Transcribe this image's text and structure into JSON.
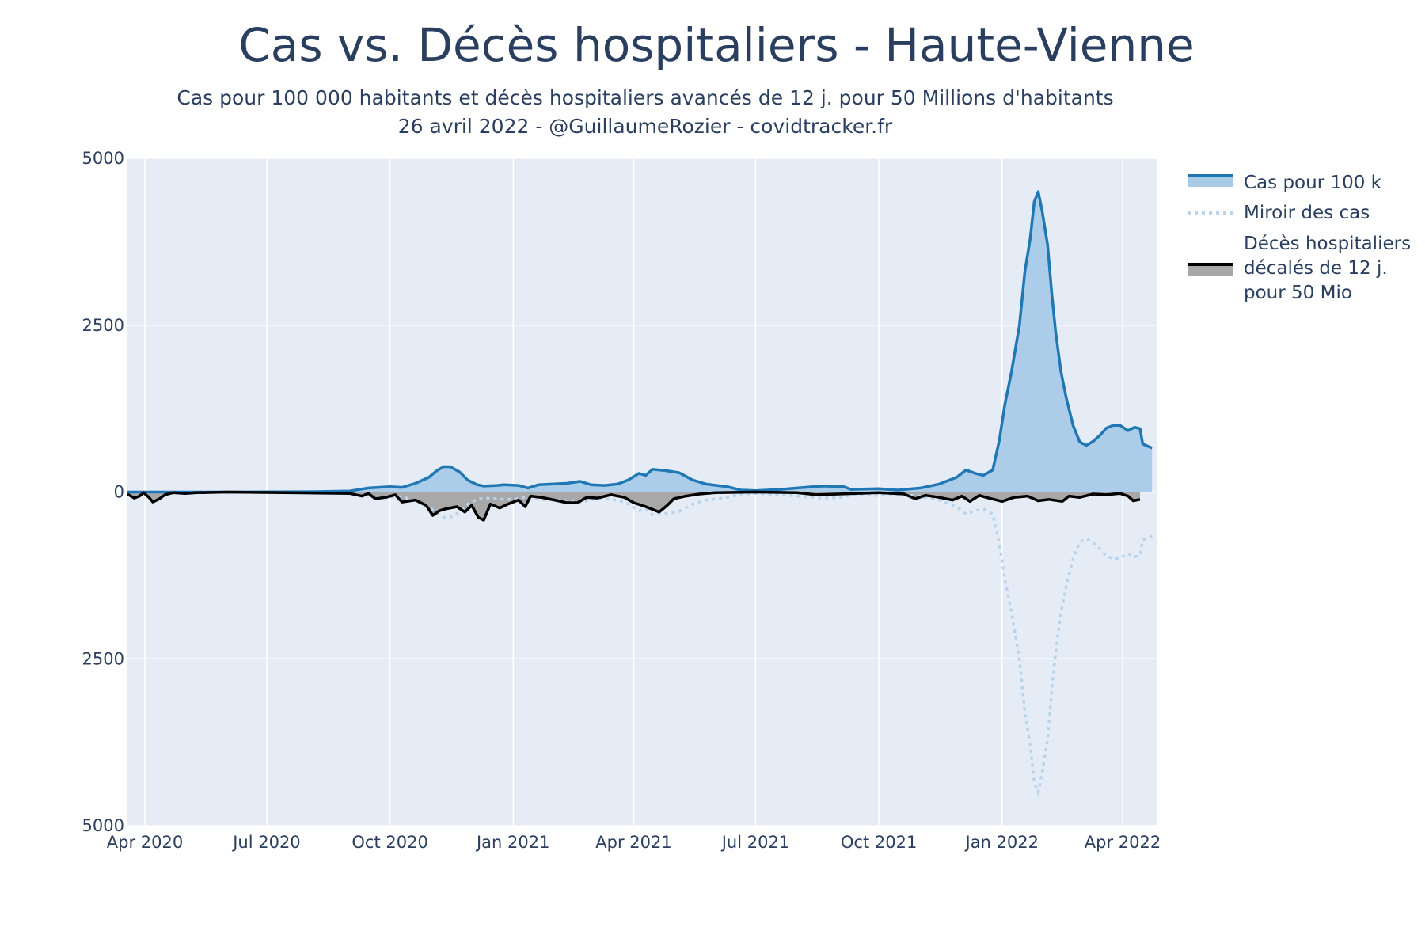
{
  "chart_data": {
    "type": "area",
    "title": "Cas vs. Décès hospitaliers - Haute-Vienne",
    "subtitle_lines": [
      "Cas pour 100 000 habitants et décès hospitaliers avancés de 12 j. pour 50 Millions d'habitants",
      "26 avril 2022 - @GuillaumeRozier - covidtracker.fr"
    ],
    "x_ticks": [
      "Apr 2020",
      "Jul 2020",
      "Oct 2020",
      "Jan 2021",
      "Apr 2021",
      "Jul 2021",
      "Oct 2021",
      "Jan 2022",
      "Apr 2022"
    ],
    "x_tick_dates": [
      "2020-04-01",
      "2020-07-01",
      "2020-10-01",
      "2021-01-01",
      "2021-04-01",
      "2021-07-01",
      "2021-10-01",
      "2022-01-01",
      "2022-04-01"
    ],
    "y_ticks": [
      {
        "value": 5000,
        "label": "5000"
      },
      {
        "value": 2500,
        "label": "2500"
      },
      {
        "value": 0,
        "label": "0"
      },
      {
        "value": -2500,
        "label": "2500"
      },
      {
        "value": -5000,
        "label": "5000"
      }
    ],
    "xlim": [
      "2020-03-19",
      "2022-04-27"
    ],
    "ylim": [
      -5000,
      5000
    ],
    "grid": true,
    "legend_position": "right",
    "colors": {
      "cases_line": "#1f77b4",
      "cases_fill": "#a8cbe8",
      "mirror_line": "#b8d4ec",
      "deaths_line": "#000000",
      "deaths_fill": "#a8a8a8",
      "plot_bg": "#e5ecf6",
      "grid": "#ffffff"
    },
    "series": [
      {
        "name": "Cas pour 100 k",
        "style": "line-fill",
        "points": [
          [
            "2020-03-19",
            0
          ],
          [
            "2020-06-01",
            0
          ],
          [
            "2020-08-01",
            5
          ],
          [
            "2020-09-01",
            15
          ],
          [
            "2020-09-15",
            60
          ],
          [
            "2020-10-01",
            80
          ],
          [
            "2020-10-10",
            70
          ],
          [
            "2020-10-20",
            130
          ],
          [
            "2020-10-30",
            220
          ],
          [
            "2020-11-05",
            320
          ],
          [
            "2020-11-10",
            380
          ],
          [
            "2020-11-15",
            380
          ],
          [
            "2020-11-22",
            300
          ],
          [
            "2020-11-28",
            180
          ],
          [
            "2020-12-05",
            110
          ],
          [
            "2020-12-10",
            90
          ],
          [
            "2020-12-20",
            100
          ],
          [
            "2020-12-25",
            110
          ],
          [
            "2021-01-05",
            100
          ],
          [
            "2021-01-12",
            60
          ],
          [
            "2021-01-20",
            110
          ],
          [
            "2021-01-30",
            120
          ],
          [
            "2021-02-10",
            130
          ],
          [
            "2021-02-20",
            160
          ],
          [
            "2021-02-28",
            110
          ],
          [
            "2021-03-10",
            100
          ],
          [
            "2021-03-20",
            120
          ],
          [
            "2021-03-28",
            180
          ],
          [
            "2021-04-05",
            280
          ],
          [
            "2021-04-10",
            250
          ],
          [
            "2021-04-15",
            340
          ],
          [
            "2021-04-25",
            320
          ],
          [
            "2021-05-05",
            290
          ],
          [
            "2021-05-15",
            180
          ],
          [
            "2021-05-25",
            120
          ],
          [
            "2021-06-10",
            80
          ],
          [
            "2021-06-20",
            30
          ],
          [
            "2021-07-01",
            20
          ],
          [
            "2021-07-20",
            40
          ],
          [
            "2021-08-01",
            60
          ],
          [
            "2021-08-20",
            90
          ],
          [
            "2021-09-05",
            80
          ],
          [
            "2021-09-10",
            40
          ],
          [
            "2021-10-01",
            50
          ],
          [
            "2021-10-15",
            30
          ],
          [
            "2021-11-01",
            60
          ],
          [
            "2021-11-15",
            120
          ],
          [
            "2021-11-28",
            220
          ],
          [
            "2021-12-05",
            330
          ],
          [
            "2021-12-12",
            280
          ],
          [
            "2021-12-18",
            250
          ],
          [
            "2021-12-25",
            330
          ],
          [
            "2021-12-30",
            780
          ],
          [
            "2022-01-03",
            1300
          ],
          [
            "2022-01-08",
            1800
          ],
          [
            "2022-01-14",
            2500
          ],
          [
            "2022-01-18",
            3300
          ],
          [
            "2022-01-22",
            3800
          ],
          [
            "2022-01-25",
            4350
          ],
          [
            "2022-01-28",
            4500
          ],
          [
            "2022-01-31",
            4200
          ],
          [
            "2022-02-04",
            3700
          ],
          [
            "2022-02-07",
            3000
          ],
          [
            "2022-02-10",
            2400
          ],
          [
            "2022-02-14",
            1800
          ],
          [
            "2022-02-18",
            1400
          ],
          [
            "2022-02-23",
            1000
          ],
          [
            "2022-02-28",
            750
          ],
          [
            "2022-03-05",
            700
          ],
          [
            "2022-03-10",
            760
          ],
          [
            "2022-03-15",
            850
          ],
          [
            "2022-03-20",
            960
          ],
          [
            "2022-03-25",
            1000
          ],
          [
            "2022-03-30",
            1000
          ],
          [
            "2022-04-05",
            920
          ],
          [
            "2022-04-10",
            970
          ],
          [
            "2022-04-14",
            950
          ],
          [
            "2022-04-16",
            720
          ],
          [
            "2022-04-23",
            660
          ]
        ]
      },
      {
        "name": "Miroir des cas",
        "style": "dotted-mirror",
        "mirror_of": 0
      },
      {
        "name": "Décès hospitaliers décalés de 12 j. pour 50 Mio",
        "legend_lines": [
          "Décès hospitaliers",
          "décalés de 12 j.",
          "pour 50 Mio"
        ],
        "style": "line-fill-negative",
        "points": [
          [
            "2020-03-19",
            -30
          ],
          [
            "2020-03-24",
            -90
          ],
          [
            "2020-03-28",
            -60
          ],
          [
            "2020-03-31",
            -10
          ],
          [
            "2020-04-04",
            -80
          ],
          [
            "2020-04-07",
            -150
          ],
          [
            "2020-04-12",
            -100
          ],
          [
            "2020-04-16",
            -40
          ],
          [
            "2020-04-22",
            -10
          ],
          [
            "2020-05-01",
            -20
          ],
          [
            "2020-05-10",
            -10
          ],
          [
            "2020-06-01",
            0
          ],
          [
            "2020-09-01",
            -20
          ],
          [
            "2020-09-10",
            -60
          ],
          [
            "2020-09-15",
            -20
          ],
          [
            "2020-09-20",
            -100
          ],
          [
            "2020-09-28",
            -80
          ],
          [
            "2020-10-05",
            -40
          ],
          [
            "2020-10-10",
            -150
          ],
          [
            "2020-10-20",
            -120
          ],
          [
            "2020-10-28",
            -200
          ],
          [
            "2020-11-02",
            -350
          ],
          [
            "2020-11-07",
            -280
          ],
          [
            "2020-11-12",
            -250
          ],
          [
            "2020-11-20",
            -220
          ],
          [
            "2020-11-26",
            -300
          ],
          [
            "2020-12-01",
            -200
          ],
          [
            "2020-12-06",
            -380
          ],
          [
            "2020-12-10",
            -420
          ],
          [
            "2020-12-15",
            -180
          ],
          [
            "2020-12-22",
            -240
          ],
          [
            "2020-12-28",
            -180
          ],
          [
            "2021-01-05",
            -120
          ],
          [
            "2021-01-10",
            -220
          ],
          [
            "2021-01-14",
            -60
          ],
          [
            "2021-01-22",
            -80
          ],
          [
            "2021-02-01",
            -120
          ],
          [
            "2021-02-10",
            -160
          ],
          [
            "2021-02-18",
            -160
          ],
          [
            "2021-02-25",
            -80
          ],
          [
            "2021-03-05",
            -90
          ],
          [
            "2021-03-15",
            -40
          ],
          [
            "2021-03-25",
            -80
          ],
          [
            "2021-04-01",
            -160
          ],
          [
            "2021-04-10",
            -220
          ],
          [
            "2021-04-20",
            -300
          ],
          [
            "2021-04-26",
            -200
          ],
          [
            "2021-05-01",
            -100
          ],
          [
            "2021-05-10",
            -60
          ],
          [
            "2021-05-20",
            -30
          ],
          [
            "2021-06-01",
            -10
          ],
          [
            "2021-07-01",
            0
          ],
          [
            "2021-08-01",
            -10
          ],
          [
            "2021-08-15",
            -40
          ],
          [
            "2021-09-01",
            -30
          ],
          [
            "2021-10-01",
            -10
          ],
          [
            "2021-10-20",
            -30
          ],
          [
            "2021-10-28",
            -100
          ],
          [
            "2021-11-05",
            -50
          ],
          [
            "2021-11-15",
            -80
          ],
          [
            "2021-11-25",
            -120
          ],
          [
            "2021-12-02",
            -60
          ],
          [
            "2021-12-08",
            -140
          ],
          [
            "2021-12-15",
            -50
          ],
          [
            "2021-12-20",
            -80
          ],
          [
            "2022-01-01",
            -140
          ],
          [
            "2022-01-10",
            -80
          ],
          [
            "2022-01-20",
            -60
          ],
          [
            "2022-01-28",
            -130
          ],
          [
            "2022-02-05",
            -110
          ],
          [
            "2022-02-15",
            -140
          ],
          [
            "2022-02-20",
            -60
          ],
          [
            "2022-02-28",
            -80
          ],
          [
            "2022-03-10",
            -30
          ],
          [
            "2022-03-20",
            -40
          ],
          [
            "2022-03-30",
            -20
          ],
          [
            "2022-04-05",
            -60
          ],
          [
            "2022-04-09",
            -130
          ],
          [
            "2022-04-14",
            -110
          ]
        ]
      }
    ]
  }
}
